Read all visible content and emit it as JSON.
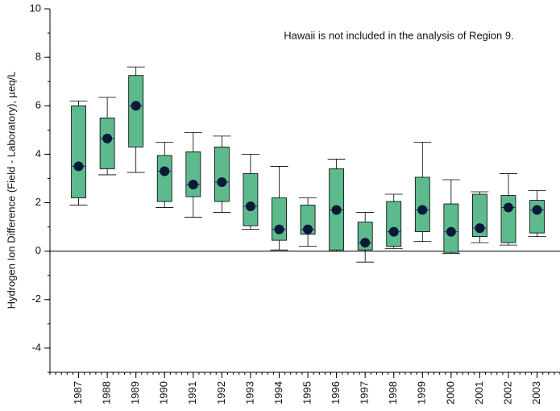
{
  "chart_data": {
    "type": "box",
    "annotation": "Hawaii is not included in the analysis of Region 9.",
    "y_label": "Hydrogen Ion Difference (Field - Laboratory), µeq/L",
    "x": [
      1987,
      1988,
      1989,
      1990,
      1991,
      1992,
      1993,
      1994,
      1995,
      1996,
      1997,
      1998,
      1999,
      2000,
      2001,
      2002,
      2003
    ],
    "min": [
      1.9,
      3.15,
      3.25,
      1.8,
      1.4,
      1.6,
      0.9,
      0.05,
      0.2,
      0.0,
      -0.45,
      0.1,
      0.4,
      -0.1,
      0.35,
      0.25,
      0.6
    ],
    "q1": [
      2.2,
      3.4,
      4.3,
      2.05,
      2.25,
      2.05,
      1.05,
      0.45,
      0.7,
      0.05,
      0.05,
      0.2,
      0.8,
      -0.05,
      0.6,
      0.35,
      0.75
    ],
    "median": [
      3.5,
      4.65,
      6.0,
      3.3,
      2.75,
      2.85,
      1.85,
      0.9,
      0.9,
      1.7,
      0.35,
      0.8,
      1.7,
      0.8,
      0.95,
      1.8,
      1.7
    ],
    "q3": [
      6.0,
      5.5,
      7.25,
      3.95,
      4.1,
      4.3,
      3.2,
      2.2,
      1.9,
      3.4,
      1.2,
      2.05,
      3.05,
      1.95,
      2.35,
      2.3,
      2.1
    ],
    "max": [
      6.2,
      6.35,
      7.6,
      4.5,
      4.9,
      4.75,
      4.0,
      3.5,
      2.2,
      3.8,
      1.6,
      2.35,
      4.5,
      2.95,
      2.45,
      3.2,
      2.5
    ],
    "color": "#5dba8c",
    "dot_color": "#0b1838",
    "xlim": [
      1986,
      2003.8
    ],
    "ylim": [
      -5,
      10
    ],
    "yticks": [
      -4,
      -2,
      0,
      2,
      4,
      6,
      8,
      10
    ]
  }
}
